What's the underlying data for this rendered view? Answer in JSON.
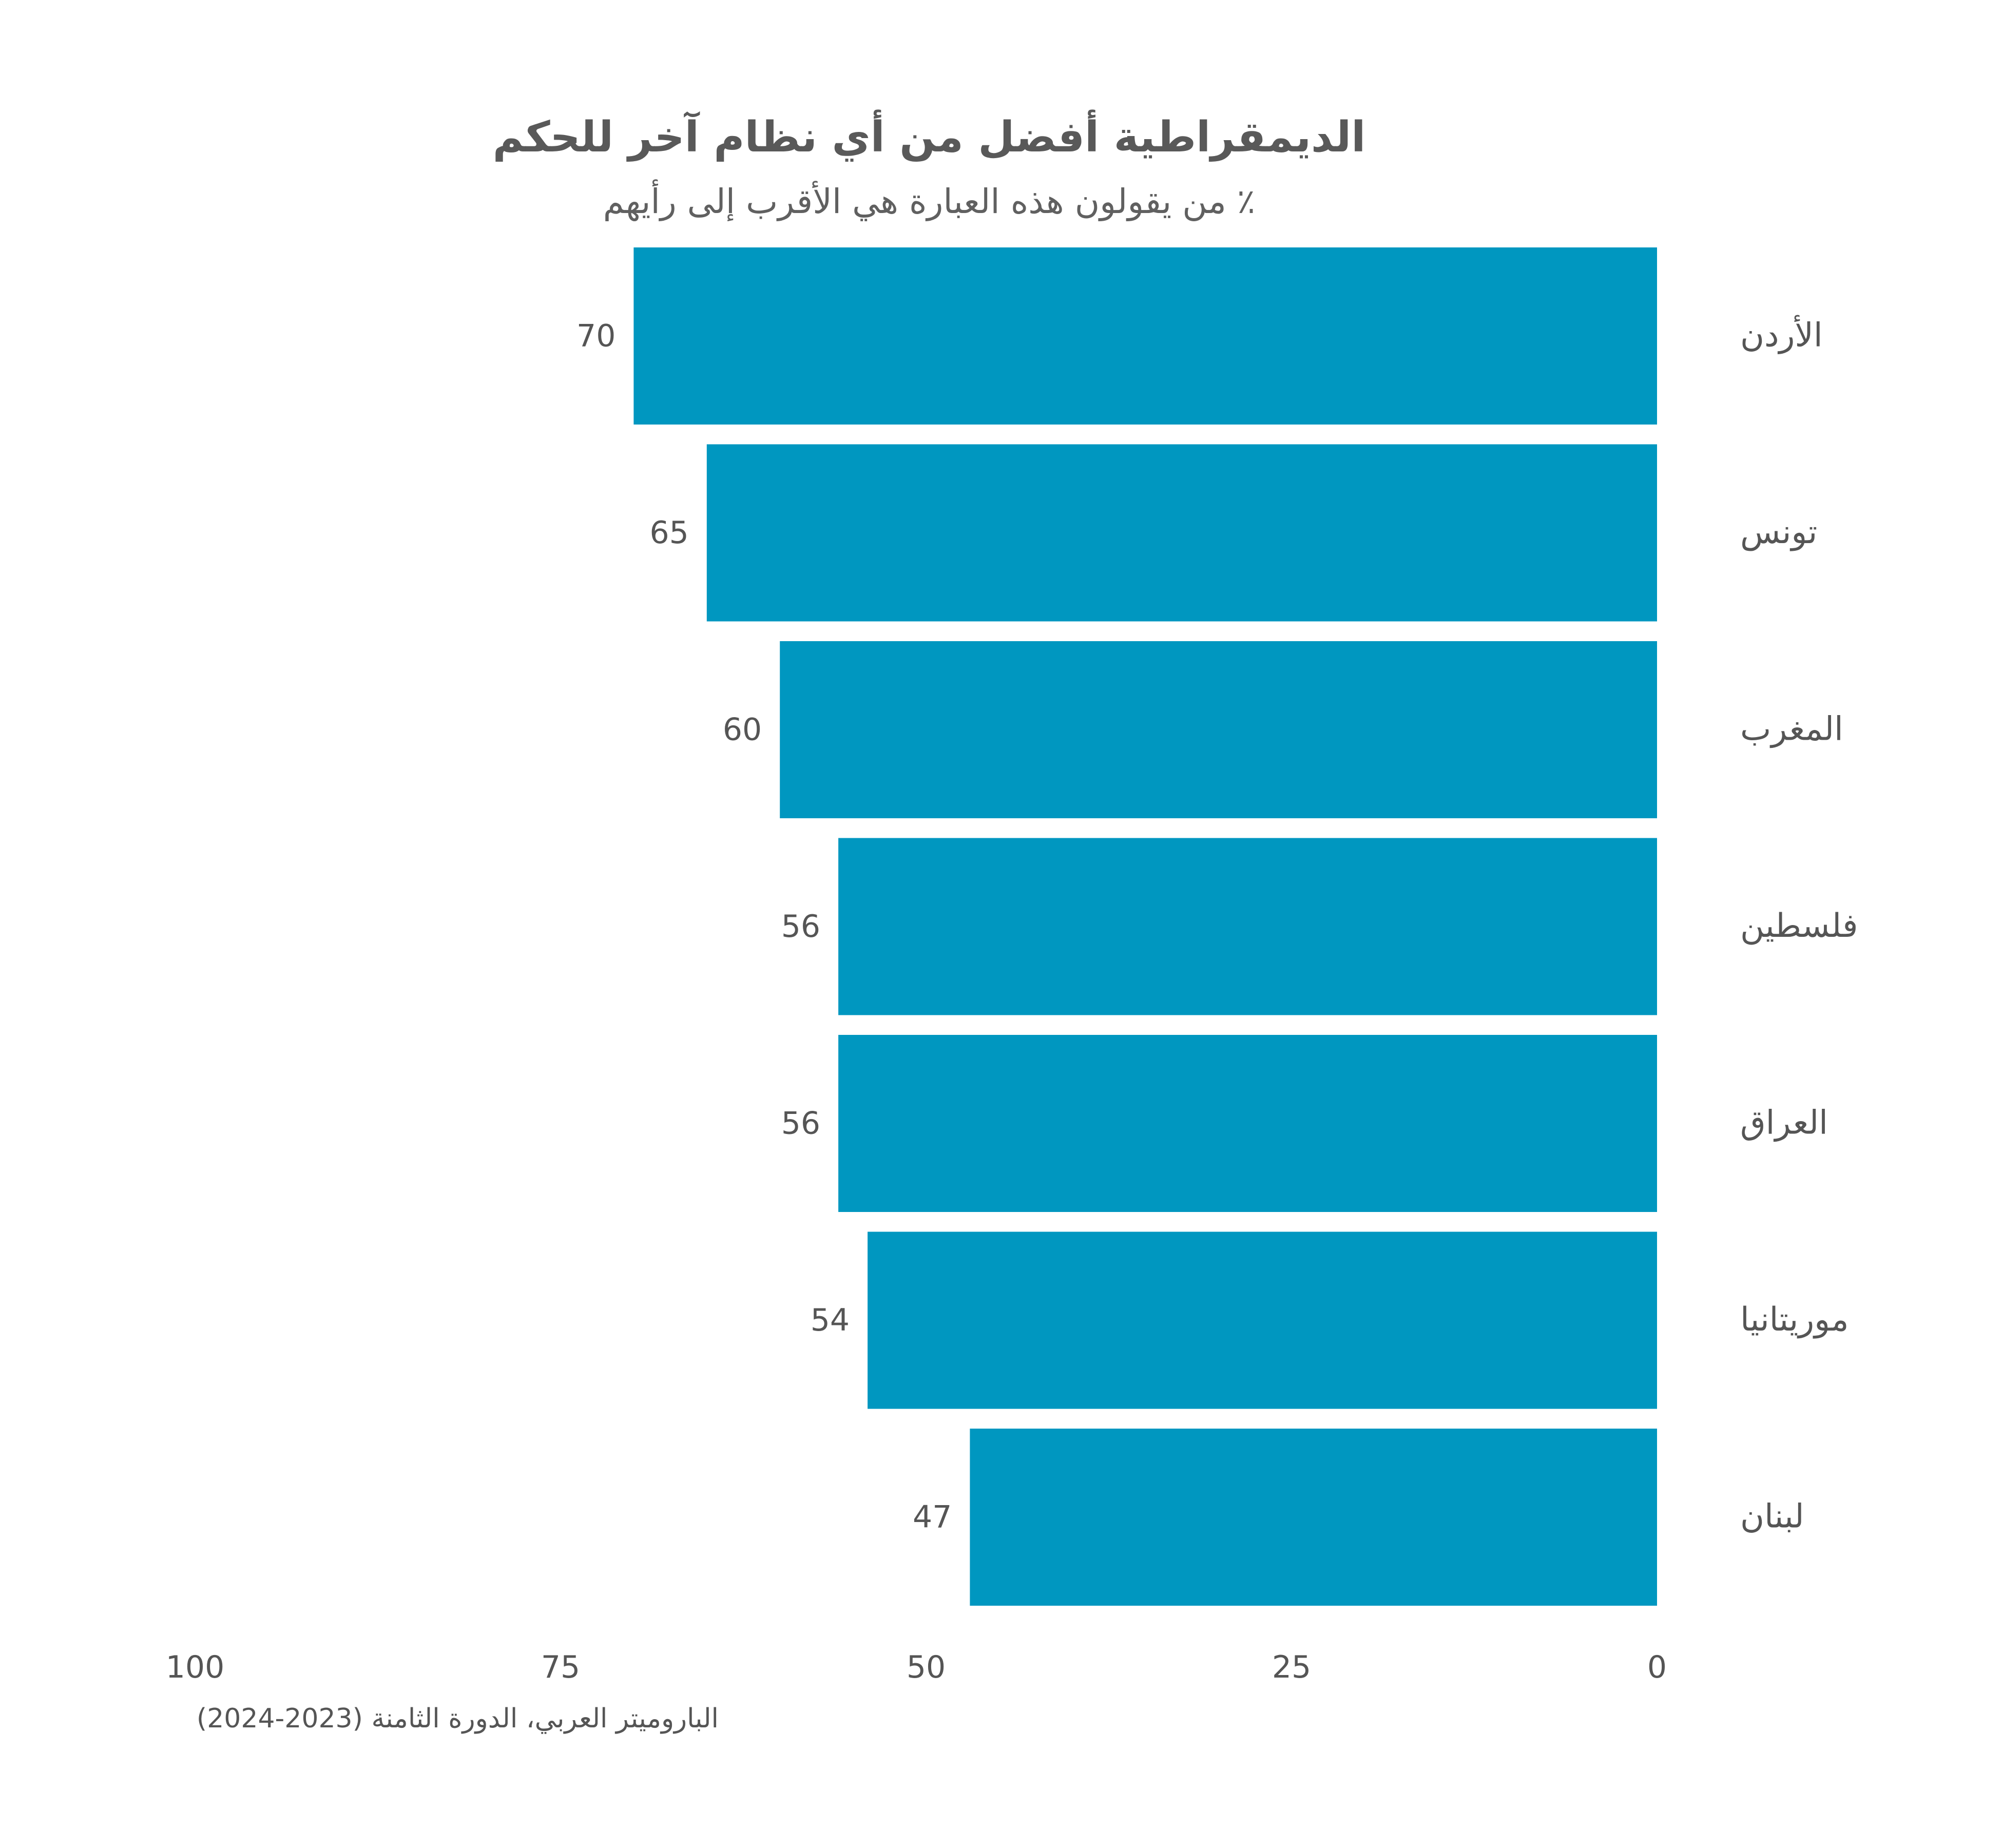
{
  "chart_data": {
    "type": "bar",
    "orientation": "horizontal",
    "title": "الديمقراطية أفضل من أي نظام آخر للحكم",
    "subtitle": "٪ من يقولون هذه العبارة هي الأقرب إلى رأيهم",
    "categories": [
      "الأردن",
      "تونس",
      "المغرب",
      "فلسطين",
      "العراق",
      "موريتانيا",
      "لبنان"
    ],
    "values": [
      70,
      65,
      60,
      56,
      56,
      54,
      47
    ],
    "x_ticks": [
      100,
      75,
      50,
      25,
      0
    ],
    "xlim": [
      0,
      100
    ],
    "x_reversed": true,
    "grid": false,
    "bar_color": "#0097C0",
    "source": "الباروميتر العربي، الدورة الثامنة (2023-2024)"
  }
}
